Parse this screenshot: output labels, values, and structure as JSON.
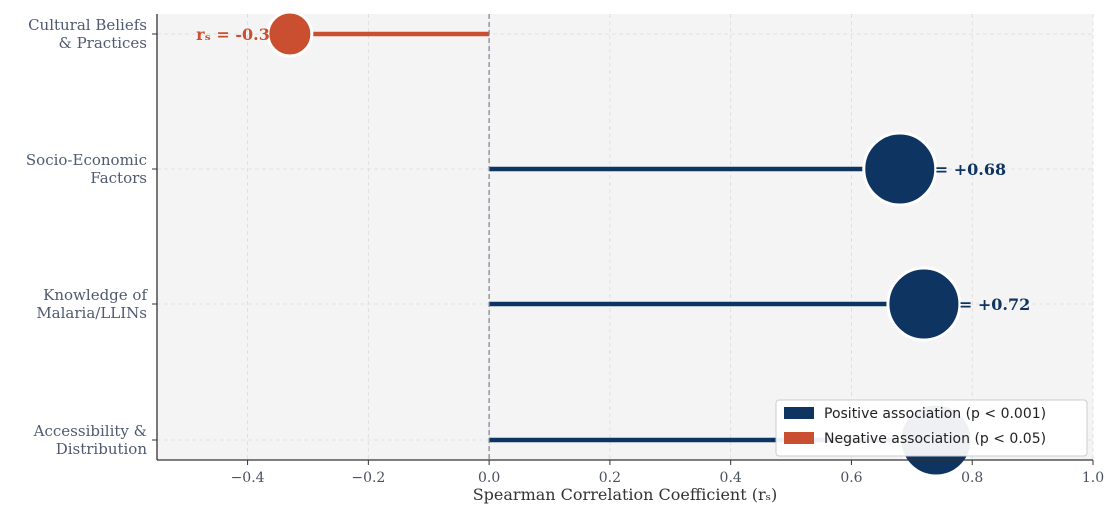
{
  "chart_data": {
    "type": "lollipop",
    "xlabel": "Spearman Correlation Coefficient (rₛ)",
    "xlim": [
      -0.55,
      1.0
    ],
    "xticks": [
      {
        "value": -0.4,
        "label": "−0.4"
      },
      {
        "value": -0.2,
        "label": "−0.2"
      },
      {
        "value": 0.0,
        "label": "0.0"
      },
      {
        "value": 0.2,
        "label": "0.2"
      },
      {
        "value": 0.4,
        "label": "0.4"
      },
      {
        "value": 0.6,
        "label": "0.6"
      },
      {
        "value": 0.8,
        "label": "0.8"
      },
      {
        "value": 1.0,
        "label": "1.0"
      }
    ],
    "grid": true,
    "reference_line_x": 0,
    "legend_position": "lower-right",
    "colors": {
      "positive": "#0e3461",
      "negative": "#c94f30"
    },
    "legend": [
      {
        "key": "positive",
        "label": "Positive association (p < 0.001)"
      },
      {
        "key": "negative",
        "label": "Negative association (p < 0.05)"
      }
    ],
    "items": [
      {
        "category": [
          "Cultural Beliefs",
          "& Practices"
        ],
        "value": -0.33,
        "label": "rₛ = -0.3",
        "sign": "negative"
      },
      {
        "category": [
          "Socio-Economic",
          "Factors"
        ],
        "value": 0.68,
        "label": "= +0.68",
        "sign": "positive"
      },
      {
        "category": [
          "Knowledge of",
          "Malaria/LLINs"
        ],
        "value": 0.72,
        "label": "= +0.72",
        "sign": "positive"
      },
      {
        "category": [
          "Accessibility &",
          "Distribution"
        ],
        "value": 0.74,
        "label": "",
        "sign": "positive"
      }
    ]
  }
}
